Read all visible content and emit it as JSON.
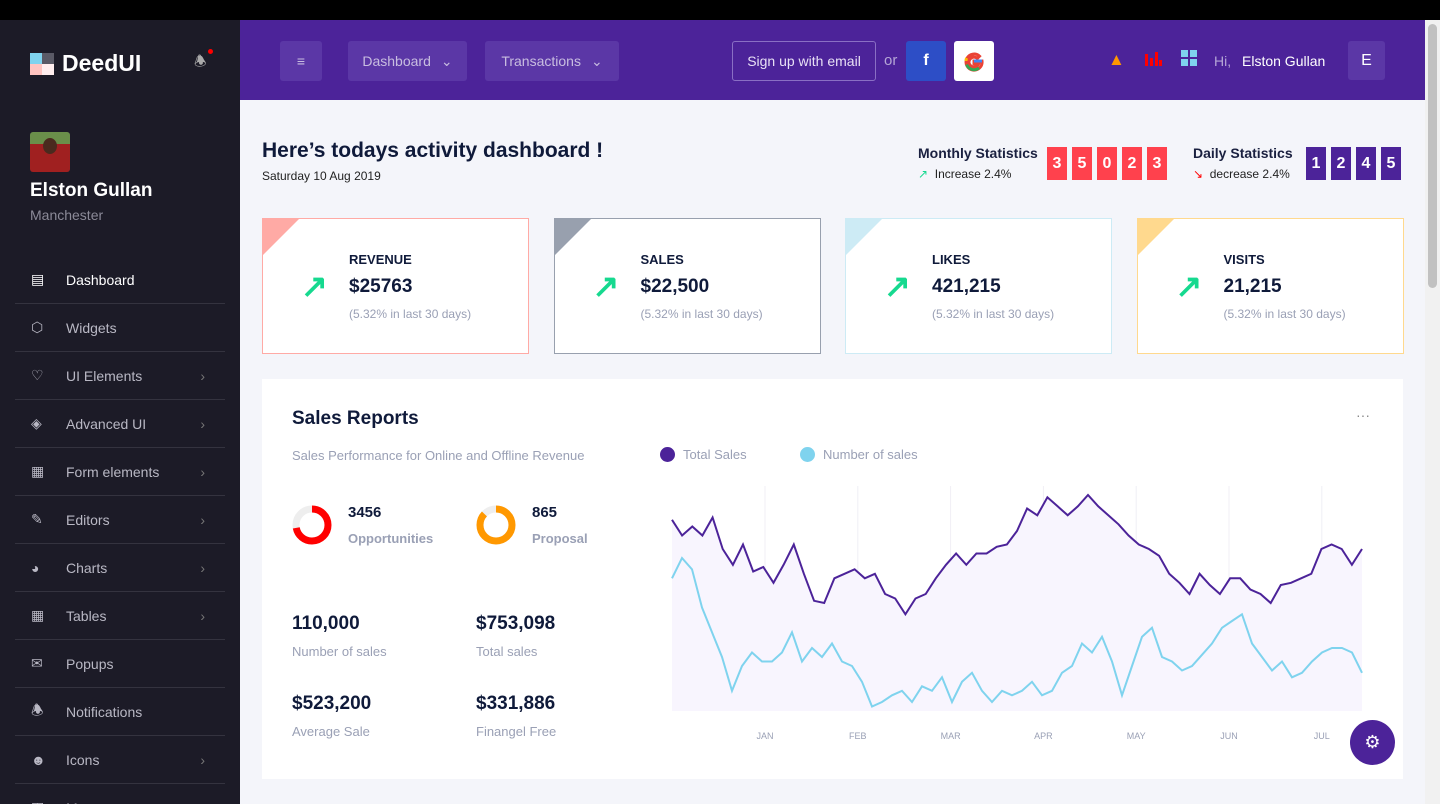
{
  "brand": {
    "name": "DeedUI"
  },
  "profile": {
    "name": "Elston Gullan",
    "location": "Manchester"
  },
  "sidebar": {
    "items": [
      {
        "label": "Dashboard",
        "icon": "laptop-icon",
        "chevron": false
      },
      {
        "label": "Widgets",
        "icon": "cube-icon",
        "chevron": false
      },
      {
        "label": "UI Elements",
        "icon": "heart-icon",
        "chevron": true
      },
      {
        "label": "Advanced UI",
        "icon": "layers-icon",
        "chevron": true
      },
      {
        "label": "Form elements",
        "icon": "grid-icon",
        "chevron": true
      },
      {
        "label": "Editors",
        "icon": "edit-icon",
        "chevron": true
      },
      {
        "label": "Charts",
        "icon": "pie-chart-icon",
        "chevron": true
      },
      {
        "label": "Tables",
        "icon": "table-icon",
        "chevron": true
      },
      {
        "label": "Popups",
        "icon": "message-alert-icon",
        "chevron": false
      },
      {
        "label": "Notifications",
        "icon": "bell-icon",
        "chevron": false
      },
      {
        "label": "Icons",
        "icon": "smile-icon",
        "chevron": true
      },
      {
        "label": "Maps",
        "icon": "map-icon",
        "chevron": true
      }
    ]
  },
  "header": {
    "menu_dashboard": "Dashboard",
    "menu_transactions": "Transactions",
    "signup": "Sign up with email",
    "or": "or",
    "facebook": "f",
    "greeting": "Hi,",
    "user": "Elston Gullan",
    "avatar_letter": "E"
  },
  "page": {
    "title": "Here’s todays activity dashboard !",
    "date": "Saturday 10 Aug 2019"
  },
  "stats": {
    "monthly": {
      "label": "Monthly Statistics",
      "sub": "Increase 2.4%",
      "digits": [
        "3",
        "5",
        "0",
        "2",
        "3"
      ],
      "color": "#ff414d"
    },
    "daily": {
      "label": "Daily Statistics",
      "sub": "decrease 2.4%",
      "digits": [
        "1",
        "2",
        "4",
        "5"
      ],
      "color": "#4c2399"
    }
  },
  "cards": [
    {
      "label": "REVENUE",
      "value": "$25763",
      "sub": "(5.32% in last 30 days)",
      "color": "#ffaaa5"
    },
    {
      "label": "SALES",
      "value": "$22,500",
      "sub": "(5.32% in last 30 days)",
      "color": "#98a0ae"
    },
    {
      "label": "LIKES",
      "value": "421,215",
      "sub": "(5.32% in last 30 days)",
      "color": "#cdebf5"
    },
    {
      "label": "VISITS",
      "value": "21,215",
      "sub": "(5.32% in last 30 days)",
      "color": "#ffd98e"
    }
  ],
  "report": {
    "title": "Sales Reports",
    "subtitle": "Sales Performance for Online and Offline Revenue",
    "menu": "···",
    "donuts": [
      {
        "value": "3456",
        "label": "Opportunities",
        "fill": 0.72,
        "color": "#ff0000"
      },
      {
        "value": "865",
        "label": "Proposal",
        "fill": 0.87,
        "color": "#ff9800"
      }
    ],
    "figures": [
      {
        "value": "110,000",
        "label": "Number of sales"
      },
      {
        "value": "$753,098",
        "label": "Total sales"
      },
      {
        "value": "$523,200",
        "label": "Average Sale"
      },
      {
        "value": "$331,886",
        "label": "Finangel Free"
      }
    ]
  },
  "chart_data": {
    "type": "line",
    "grid": true,
    "legend": "top-left",
    "xticks": [
      "JAN",
      "FEB",
      "MAR",
      "APR",
      "MAY",
      "JUN",
      "JUL"
    ],
    "ylim": [
      0,
      100
    ],
    "series": [
      {
        "name": "Total Sales",
        "color": "#4c2399",
        "fill": "#f8f5fe",
        "values": [
          85,
          78,
          82,
          78,
          86,
          72,
          65,
          74,
          62,
          64,
          57,
          65,
          74,
          61,
          49,
          48,
          59,
          61,
          63,
          59,
          61,
          52,
          50,
          43,
          50,
          52,
          59,
          65,
          70,
          65,
          70,
          70,
          73,
          74,
          80,
          90,
          87,
          95,
          91,
          87,
          91,
          96,
          91,
          87,
          83,
          78,
          74,
          72,
          69,
          61,
          57,
          52,
          61,
          56,
          52,
          59,
          59,
          54,
          52,
          48,
          56,
          57,
          59,
          61,
          72,
          74,
          72,
          65,
          72
        ]
      },
      {
        "name": "Number of sales",
        "color": "#7fd3ee",
        "values": [
          59,
          68,
          63,
          46,
          35,
          24,
          9,
          20,
          26,
          22,
          22,
          26,
          35,
          22,
          28,
          24,
          30,
          22,
          20,
          13,
          2,
          4,
          7,
          9,
          4,
          11,
          9,
          15,
          4,
          13,
          17,
          9,
          4,
          9,
          7,
          9,
          13,
          7,
          9,
          17,
          20,
          30,
          26,
          33,
          22,
          7,
          20,
          33,
          37,
          24,
          22,
          18,
          20,
          25,
          30,
          37,
          40,
          43,
          30,
          24,
          18,
          22,
          15,
          17,
          22,
          26,
          28,
          28,
          26,
          17
        ]
      }
    ]
  }
}
